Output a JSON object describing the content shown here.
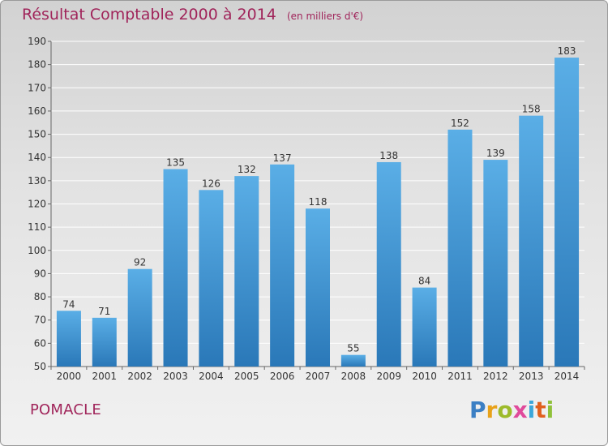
{
  "title": "Résultat Comptable 2000 à 2014",
  "unit_note": "(en milliers d'€)",
  "commune": "POMACLE",
  "logo_text": [
    "P",
    "r",
    "o",
    "x",
    "i",
    "t",
    "i"
  ],
  "colors": {
    "title": "#a0245a",
    "bar_top": "#5aaee6",
    "bar_bottom": "#2a78b8",
    "logo": [
      "#3b7fc4",
      "#e8a21a",
      "#9dbb2a",
      "#e04a9b",
      "#3ba6d9",
      "#e0601e",
      "#8fc13a"
    ]
  },
  "chart_data": {
    "type": "bar",
    "title": "Résultat Comptable 2000 à 2014",
    "categories": [
      "2000",
      "2001",
      "2002",
      "2003",
      "2004",
      "2005",
      "2006",
      "2007",
      "2008",
      "2009",
      "2010",
      "2011",
      "2012",
      "2013",
      "2014"
    ],
    "values": [
      74,
      71,
      92,
      135,
      126,
      132,
      137,
      118,
      55,
      138,
      84,
      152,
      139,
      158,
      183
    ],
    "ylim": [
      50,
      190
    ],
    "yticks": [
      50,
      60,
      70,
      80,
      90,
      100,
      110,
      120,
      130,
      140,
      150,
      160,
      170,
      180,
      190
    ],
    "grid": true,
    "data_labels": true
  }
}
